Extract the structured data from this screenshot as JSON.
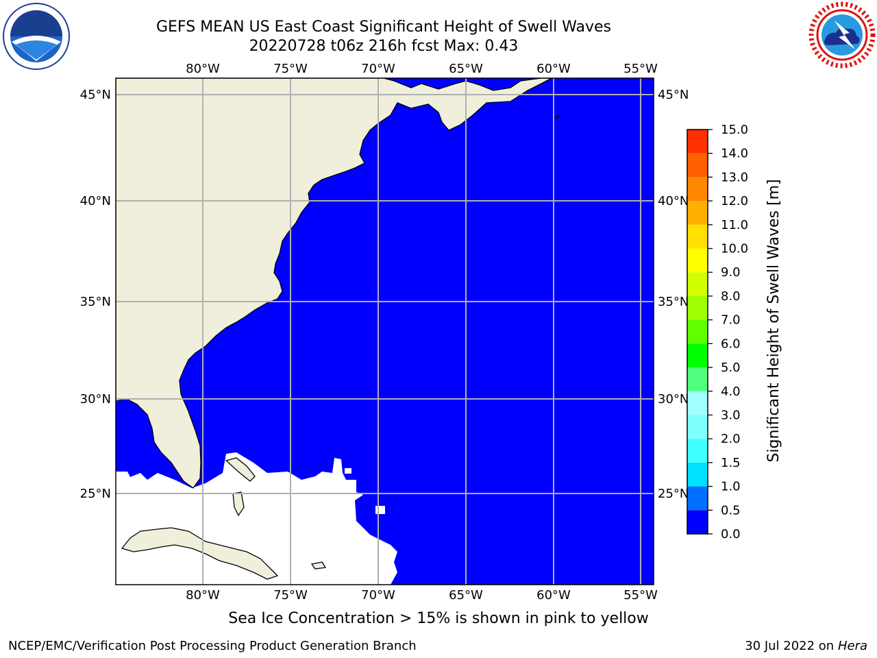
{
  "header": {
    "title_line1": "GEFS MEAN US East Coast Significant Height of Swell Waves",
    "title_line2": "20220728 t06z 216h fcst   Max: 0.43"
  },
  "map": {
    "longitude_labels": [
      "80°W",
      "75°W",
      "70°W",
      "65°W",
      "60°W",
      "55°W"
    ],
    "latitude_labels": [
      "45°N",
      "40°N",
      "35°N",
      "30°N",
      "25°N"
    ],
    "colors": {
      "land": "#efefdc",
      "ocean": "#0000ff",
      "nodata": "#ffffff",
      "grid": "#b0b0b0"
    }
  },
  "colorbar": {
    "label": "Significant Height of Swell Waves [m]",
    "ticks": [
      "0.0",
      "0.5",
      "1.0",
      "1.5",
      "2.0",
      "3.0",
      "4.0",
      "5.0",
      "6.0",
      "7.0",
      "8.0",
      "9.0",
      "10.0",
      "11.0",
      "12.0",
      "13.0",
      "14.0",
      "15.0"
    ],
    "colors": [
      "#0000ff",
      "#0070ff",
      "#00e0ff",
      "#40ffff",
      "#80ffff",
      "#a0ffff",
      "#50ff80",
      "#00ff00",
      "#60ff00",
      "#a0ff00",
      "#d0ff00",
      "#ffff00",
      "#ffe000",
      "#ffb000",
      "#ff8800",
      "#ff6000",
      "#ff3000",
      "#ff0000"
    ]
  },
  "caption": "Sea Ice Concentration > 15% is shown in pink to yellow",
  "footer": {
    "left": "NCEP/EMC/Verification Post Processing Product Generation Branch",
    "right_date": "30 Jul 2022 on ",
    "right_machine": "Hera"
  }
}
